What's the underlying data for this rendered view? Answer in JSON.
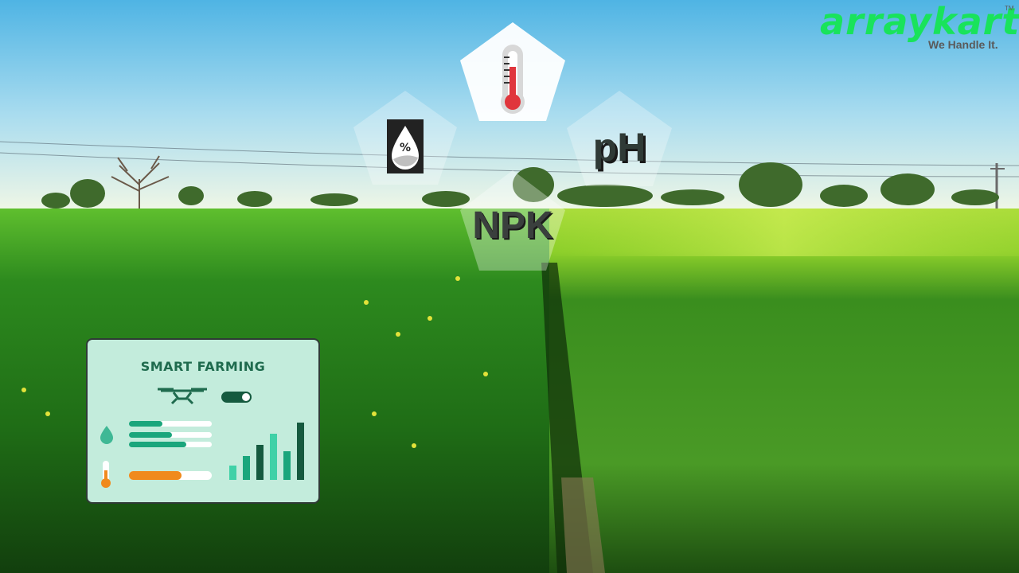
{
  "brand": {
    "name": "arraykart",
    "tagline": "We Handle It.",
    "trademark": "TM",
    "color": "#19e35b",
    "tagline_color": "#5a5a5a"
  },
  "sensors": {
    "moisture_icon": "humidity-percent-icon",
    "temperature_icon": "thermometer-icon",
    "ph_label": "pH",
    "npk_label": "NPK"
  },
  "dashboard": {
    "title": "SMART FARMING",
    "drone_icon": "drone-icon",
    "toggle_icon": "toggle-switch-icon",
    "water_icon": "water-drop-icon",
    "temp_icon": "thermometer-icon",
    "chart_icon": "bar-chart-icon",
    "accent_color": "#1aa67c",
    "orange_color": "#f08a1c",
    "card_color": "#c3ecdc"
  }
}
